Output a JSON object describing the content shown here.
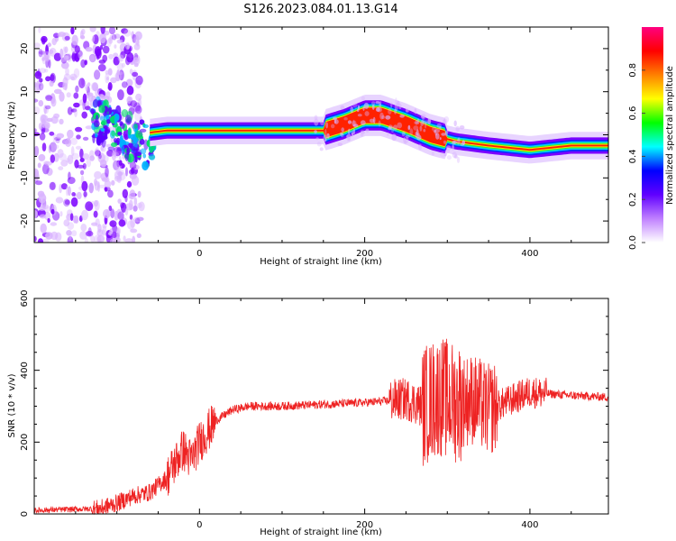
{
  "figure": {
    "title": "S126.2023.084.01.13.G14"
  },
  "chart_data": [
    {
      "type": "heatmap",
      "xlabel": "Height of straight line (km)",
      "ylabel": "Frequency (Hz)",
      "xlim": [
        -200,
        495
      ],
      "ylim": [
        -25,
        25
      ],
      "xticks": [
        0,
        200,
        400
      ],
      "yticks": [
        -20,
        -10,
        0,
        10,
        20
      ],
      "ridge": {
        "x": [
          -60,
          -40,
          0,
          50,
          100,
          150,
          175,
          200,
          220,
          250,
          280,
          310,
          350,
          400,
          450,
          495
        ],
        "y": [
          0.5,
          1.0,
          1.0,
          1.0,
          1.0,
          1.0,
          2.5,
          4.5,
          4.5,
          2.5,
          0.0,
          -1.5,
          -2.5,
          -3.5,
          -2.5,
          -2.5
        ]
      },
      "colorbar": {
        "label": "Normalized spectral amplitude",
        "range": [
          0,
          1
        ],
        "ticks": [
          "0.0",
          "0.2",
          "0.4",
          "0.6",
          "0.8"
        ],
        "colors": [
          "#ffffff",
          "#c080ff",
          "#6000ff",
          "#0000ff",
          "#00ffff",
          "#00ff00",
          "#ffff00",
          "#ff8000",
          "#ff0000",
          "#ff0080"
        ]
      }
    },
    {
      "type": "line",
      "xlabel": "Height of straight line (km)",
      "ylabel": "SNR (10 * v/v)",
      "xlim": [
        -200,
        495
      ],
      "ylim": [
        0,
        600
      ],
      "xticks": [
        0,
        200,
        400
      ],
      "yticks": [
        0,
        200,
        400,
        600
      ],
      "series": [
        {
          "color": "#ee2222",
          "x": [
            -200,
            -120,
            -100,
            -80,
            -60,
            -40,
            -20,
            -10,
            0,
            20,
            40,
            60,
            100,
            150,
            200,
            230,
            250,
            270,
            290,
            310,
            330,
            350,
            380,
            400,
            420,
            450,
            495
          ],
          "values": [
            10,
            15,
            30,
            50,
            60,
            100,
            180,
            150,
            200,
            260,
            290,
            300,
            300,
            305,
            310,
            315,
            320,
            300,
            330,
            310,
            320,
            290,
            320,
            340,
            335,
            330,
            325
          ]
        }
      ]
    }
  ]
}
